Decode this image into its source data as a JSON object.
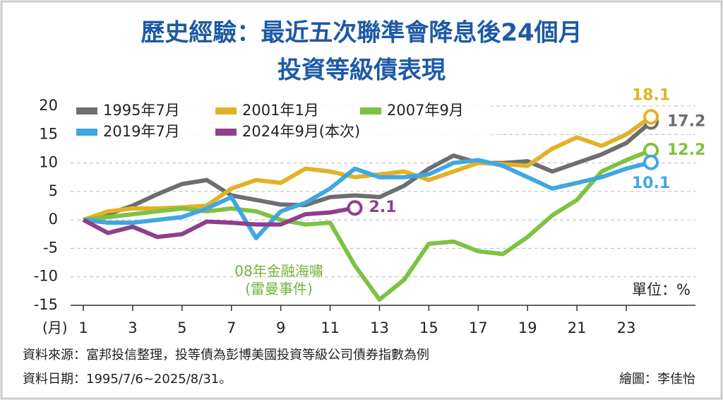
{
  "chart_data": {
    "type": "line",
    "title": [
      "歷史經驗：最近五次聯準會降息後24個月",
      "投資等級債表現"
    ],
    "x_label": "(月)",
    "unit_label": "單位：%",
    "annotation": [
      "08年金融海嘯",
      "(雷曼事件)"
    ],
    "source": [
      "資料來源：富邦投信整理，投等債為彭博美國投資等級公司債券指數為例",
      "資料日期：1995/7/6~2025/8/31。"
    ],
    "credit": "繪圖：李佳怡",
    "x": [
      1,
      2,
      3,
      4,
      5,
      6,
      7,
      8,
      9,
      10,
      11,
      12,
      13,
      14,
      15,
      16,
      17,
      18,
      19,
      20,
      21,
      22,
      23,
      24
    ],
    "xlim": [
      1,
      24
    ],
    "xticks": [
      1,
      3,
      5,
      7,
      9,
      11,
      13,
      15,
      17,
      19,
      21,
      23
    ],
    "ylim": [
      -15,
      20
    ],
    "yticks": [
      -15,
      -10,
      -5,
      0,
      5,
      10,
      15,
      20
    ],
    "grid": true,
    "legend": "top-left",
    "series": [
      {
        "name": "1995年7月",
        "color": "#6d6e71",
        "values": [
          0,
          1,
          2.5,
          4.5,
          6.3,
          7,
          4.3,
          3.5,
          2.7,
          2.6,
          4,
          4.3,
          4,
          6,
          9,
          11.3,
          10,
          10,
          10.3,
          8.5,
          10,
          11.5,
          13.5,
          17.2
        ]
      },
      {
        "name": "2001年1月",
        "color": "#e2b226",
        "values": [
          0,
          1.5,
          2,
          2,
          2.2,
          2.5,
          5.5,
          7,
          6.5,
          9,
          8.5,
          7.5,
          8,
          8.5,
          7,
          8.5,
          10,
          9.8,
          9.5,
          12.5,
          14.5,
          13,
          15,
          18.1
        ]
      },
      {
        "name": "2007年9月",
        "color": "#7dc242",
        "values": [
          0,
          0.5,
          1,
          1.5,
          2,
          1.5,
          2,
          1.5,
          0,
          -0.8,
          -0.5,
          -8,
          -14,
          -10.5,
          -4.2,
          -3.8,
          -5.5,
          -6,
          -3,
          0.8,
          3.5,
          8.5,
          10.5,
          12.2
        ]
      },
      {
        "name": "2019年7月",
        "color": "#3fa7e1",
        "values": [
          0,
          -0.5,
          -0.5,
          0,
          0.5,
          2,
          4,
          -3.2,
          1.5,
          3,
          5.5,
          9,
          7.5,
          7.5,
          8,
          10,
          10.5,
          9.5,
          7.5,
          5.5,
          6.5,
          7.5,
          9,
          10.1
        ]
      },
      {
        "name": "2024年9月(本次)",
        "color": "#8e3f8e",
        "values": [
          0,
          -2.3,
          -1.2,
          -3,
          -2.5,
          -0.3,
          -0.5,
          -0.8,
          -0.8,
          1,
          1.3,
          2.1,
          null,
          null,
          null,
          null,
          null,
          null,
          null,
          null,
          null,
          null,
          null,
          null
        ]
      }
    ]
  }
}
